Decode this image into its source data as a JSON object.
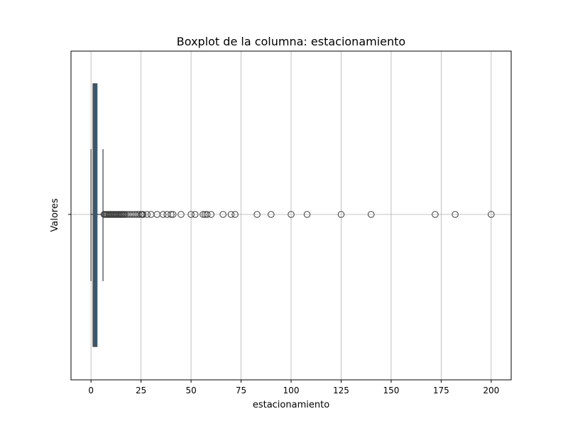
{
  "chart_data": {
    "type": "boxplot",
    "orientation": "horizontal",
    "title": "Boxplot de la columna: estacionamiento",
    "xlabel": "estacionamiento",
    "ylabel": "Valores",
    "xlim": [
      -10,
      210
    ],
    "xticks": [
      0,
      25,
      50,
      75,
      100,
      125,
      150,
      175,
      200
    ],
    "grid": true,
    "box": {
      "whisker_low": 0,
      "q1": 1,
      "median": 2,
      "q3": 3,
      "whisker_high": 6,
      "color": "#3a6f97"
    },
    "outliers": [
      6.5,
      7,
      7.5,
      8,
      8.5,
      9,
      9.5,
      10,
      10.5,
      11,
      11.5,
      12,
      12.5,
      13,
      13.5,
      14,
      14.5,
      15,
      15.5,
      16,
      16.5,
      17,
      18,
      19,
      20,
      21,
      22,
      23,
      24,
      25,
      25.5,
      26,
      28,
      30,
      33,
      36,
      38,
      40,
      41,
      45,
      50,
      52,
      56,
      57,
      58,
      60,
      66,
      70,
      72,
      83,
      90,
      100,
      108,
      125,
      140,
      172,
      182,
      200
    ]
  }
}
